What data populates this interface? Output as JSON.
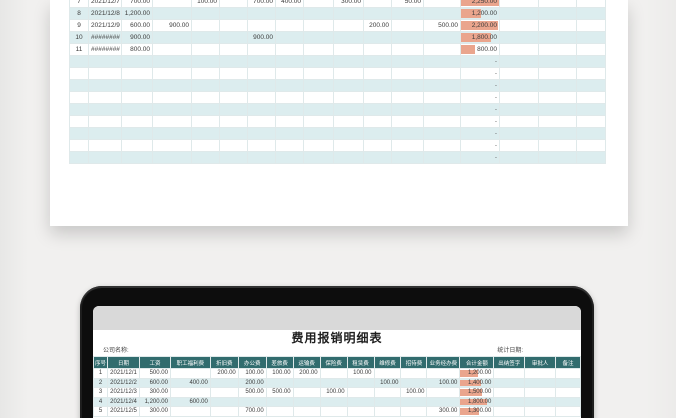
{
  "sheet": {
    "title": "费用报销明细表",
    "company_label": "公司名称:",
    "stat_date_label": "统计日期:",
    "columns": [
      "序号",
      "日期",
      "工资",
      "职工福利费",
      "折旧费",
      "办公费",
      "差旅费",
      "运输费",
      "保险费",
      "租赁费",
      "维修费",
      "招待费",
      "业务经办费",
      "合计金额",
      "出纳签字",
      "审批人",
      "备注"
    ],
    "total_col_index": 13,
    "total_max_value": 2250,
    "empty_total": "-"
  },
  "top_sheet": {
    "rows": [
      [
        "7",
        "2021/12/7",
        "700.00",
        "",
        "100.00",
        "",
        "700.00",
        "400.00",
        "",
        "300.00",
        "",
        "50.00",
        "",
        "2,250.00",
        "",
        "",
        ""
      ],
      [
        "8",
        "2021/12/8",
        "1,200.00",
        "",
        "",
        "",
        "",
        "",
        "",
        "",
        "",
        "",
        "",
        "1,200.00",
        "",
        "",
        ""
      ],
      [
        "9",
        "2021/12/9",
        "600.00",
        "900.00",
        "",
        "",
        "",
        "",
        "",
        "",
        "200.00",
        "",
        "500.00",
        "2,200.00",
        "",
        "",
        ""
      ],
      [
        "10",
        "########",
        "900.00",
        "",
        "",
        "",
        "900.00",
        "",
        "",
        "",
        "",
        "",
        "",
        "1,800.00",
        "",
        "",
        ""
      ],
      [
        "11",
        "########",
        "800.00",
        "",
        "",
        "",
        "",
        "",
        "",
        "",
        "",
        "",
        "",
        "800.00",
        "",
        "",
        ""
      ]
    ],
    "empty_row_count": 9,
    "first_empty_row_number": 12
  },
  "laptop_sheet": {
    "rows": [
      [
        "1",
        "2021/12/1",
        "500.00",
        "",
        "200.00",
        "100.00",
        "100.00",
        "200.00",
        "",
        "100.00",
        "",
        "",
        "",
        "1,200.00",
        "",
        "",
        ""
      ],
      [
        "2",
        "2021/12/2",
        "600.00",
        "400.00",
        "",
        "200.00",
        "",
        "",
        "",
        "",
        "100.00",
        "",
        "100.00",
        "1,400.00",
        "",
        "",
        ""
      ],
      [
        "3",
        "2021/12/3",
        "300.00",
        "",
        "",
        "500.00",
        "500.00",
        "",
        "100.00",
        "",
        "",
        "100.00",
        "",
        "1,500.00",
        "",
        "",
        ""
      ],
      [
        "4",
        "2021/12/4",
        "1,200.00",
        "600.00",
        "",
        "",
        "",
        "",
        "",
        "",
        "",
        "",
        "",
        "1,800.00",
        "",
        "",
        ""
      ],
      [
        "5",
        "2021/12/5",
        "300.00",
        "",
        "",
        "700.00",
        "",
        "",
        "",
        "",
        "",
        "",
        "300.00",
        "1,300.00",
        "",
        "",
        ""
      ]
    ]
  },
  "colors": {
    "header_bg": "#316c6e",
    "header_text": "#ffffff",
    "stripe": "#dcedef",
    "total_bar": "#eaa58d",
    "screen_topbar": "#d9d9d9",
    "laptop_frame": "#0d0d0d"
  }
}
